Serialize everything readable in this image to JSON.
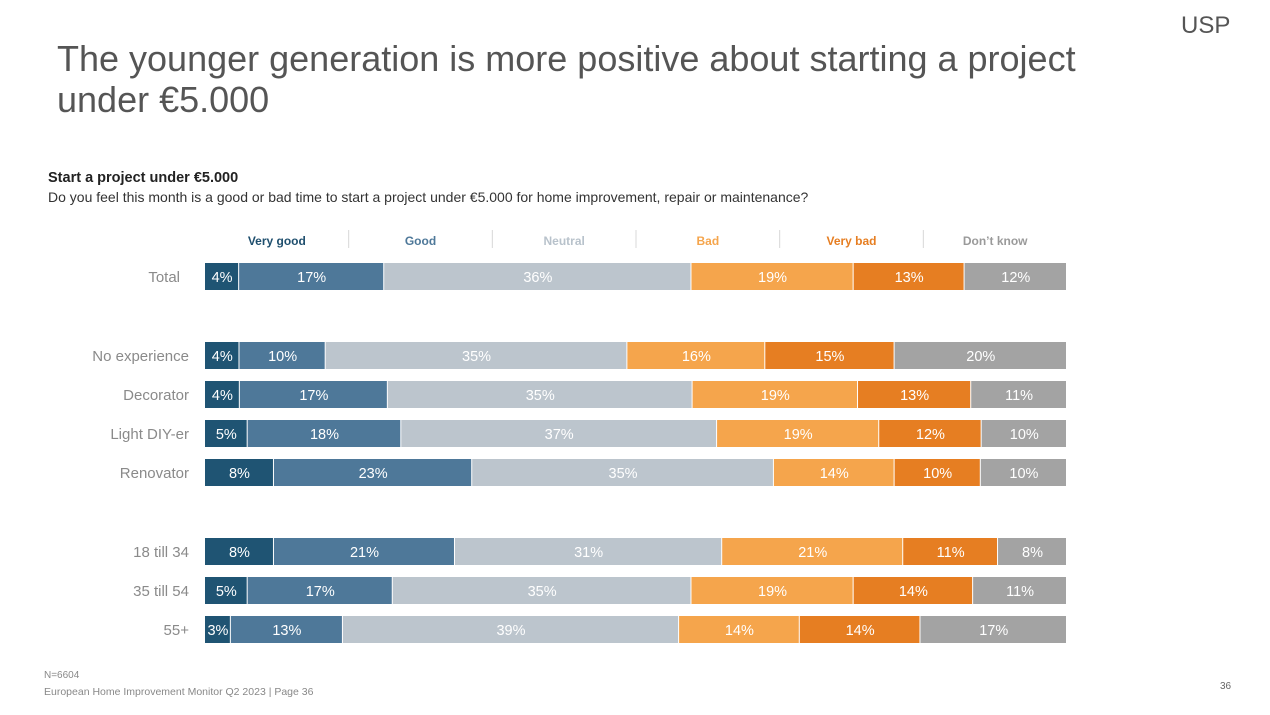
{
  "logo": "USP",
  "title": "The younger generation is more positive about starting a project under €5.000",
  "footer": {
    "n": "N=6604",
    "source": "European Home Improvement Monitor Q2 2023 | Page 36",
    "page_number": "36"
  },
  "colors": {
    "very_good": "#1f5473",
    "good": "#4e7899",
    "neutral": "#bcc5cd",
    "bad": "#f5a54c",
    "very_bad": "#e67e22",
    "dont_know": "#a3a3a3"
  },
  "chart_data": {
    "type": "bar",
    "orientation": "horizontal",
    "stacked": true,
    "title": "Start a project under €5.000",
    "subtitle": "Do you feel this month is a good or bad time to start a project under €5.000 for home improvement, repair or maintenance?",
    "categories": [
      "Total",
      "No experience",
      "Decorator",
      "Light DIY-er",
      "Renovator",
      "18 till 34",
      "35 till 54",
      "55+"
    ],
    "series": [
      {
        "name": "Very good",
        "color": "#1f5473",
        "values": [
          4,
          4,
          4,
          5,
          8,
          8,
          5,
          3
        ]
      },
      {
        "name": "Good",
        "color": "#4e7899",
        "values": [
          17,
          10,
          17,
          18,
          23,
          21,
          17,
          13
        ]
      },
      {
        "name": "Neutral",
        "color": "#bcc5cd",
        "values": [
          36,
          35,
          35,
          37,
          35,
          31,
          35,
          39
        ]
      },
      {
        "name": "Bad",
        "color": "#f5a54c",
        "values": [
          19,
          16,
          19,
          19,
          14,
          21,
          19,
          14
        ]
      },
      {
        "name": "Very bad",
        "color": "#e67e22",
        "values": [
          13,
          15,
          13,
          12,
          10,
          11,
          14,
          14
        ]
      },
      {
        "name": "Don’t know",
        "color": "#a3a3a3",
        "values": [
          12,
          20,
          11,
          10,
          10,
          8,
          11,
          17
        ]
      }
    ],
    "value_suffix": "%",
    "legend_position": "top",
    "grid": false
  }
}
